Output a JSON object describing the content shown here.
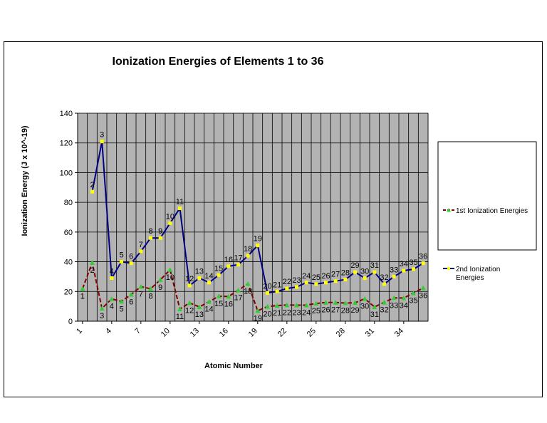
{
  "chart_data": {
    "type": "line",
    "title": "Ionization Energies of Elements 1 to 36",
    "xlabel": "Atomic Number",
    "ylabel": "Ionization Energy (J x 10^-19)",
    "ylim": [
      0,
      140
    ],
    "yticks": [
      0,
      20,
      40,
      60,
      80,
      100,
      120,
      140
    ],
    "x": [
      1,
      2,
      3,
      4,
      5,
      6,
      7,
      8,
      9,
      10,
      11,
      12,
      13,
      14,
      15,
      16,
      17,
      18,
      19,
      20,
      21,
      22,
      23,
      24,
      25,
      26,
      27,
      28,
      29,
      30,
      31,
      32,
      33,
      34,
      35,
      36
    ],
    "xtick_labels": [
      "1",
      "4",
      "7",
      "10",
      "13",
      "16",
      "19",
      "22",
      "25",
      "28",
      "31",
      "34"
    ],
    "grid": true,
    "legend_position": "right",
    "plot_background": "#b3b3b3",
    "series": [
      {
        "name": "1st Ionization Energies",
        "color": "#800000",
        "marker_color": "#33cc33",
        "values": [
          21.8,
          39.4,
          8.6,
          15.0,
          13.3,
          18.0,
          23.3,
          21.8,
          27.9,
          34.6,
          8.2,
          12.3,
          9.6,
          13.1,
          16.8,
          16.6,
          20.8,
          25.2,
          7.0,
          9.8,
          10.5,
          10.9,
          10.8,
          10.8,
          11.9,
          12.6,
          12.6,
          12.2,
          12.4,
          15.1,
          9.6,
          12.7,
          15.7,
          15.6,
          18.9,
          22.4
        ]
      },
      {
        "name": "2nd Ionization Energies",
        "color": "#000080",
        "marker_color": "#ffff00",
        "values": [
          null,
          87.2,
          121.0,
          29.0,
          40.0,
          39.0,
          47.0,
          56.0,
          56.0,
          66.0,
          76.0,
          24.0,
          29.0,
          26.0,
          31.0,
          37.0,
          38.0,
          44.0,
          51.0,
          19.0,
          20.0,
          22.0,
          23.0,
          26.0,
          25.0,
          26.0,
          27.0,
          28.0,
          33.0,
          29.0,
          33.0,
          25.0,
          30.0,
          34.0,
          35.0,
          39.0
        ]
      }
    ]
  }
}
